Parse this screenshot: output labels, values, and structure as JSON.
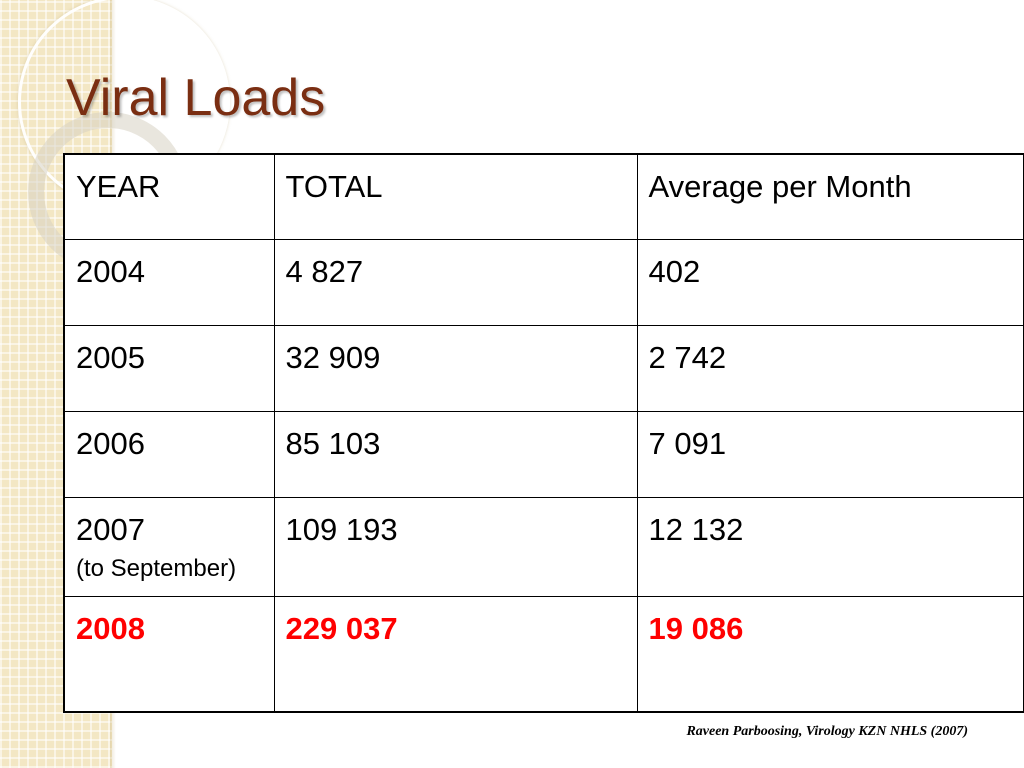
{
  "slide": {
    "title": "Viral Loads",
    "footnote": "Raveen Parboosing, Virology KZN NHLS (2007)"
  },
  "table": {
    "headers": [
      "YEAR",
      "TOTAL",
      "Average per Month"
    ],
    "rows": [
      {
        "year": "2004",
        "note": "",
        "total": "4 827",
        "average": "402",
        "highlighted": false
      },
      {
        "year": "2005",
        "note": "",
        "total": "32 909",
        "average": "2 742",
        "highlighted": false
      },
      {
        "year": "2006",
        "note": "",
        "total": "85 103",
        "average": "7 091",
        "highlighted": false
      },
      {
        "year": "2007",
        "note": "(to September)",
        "total": "109 193",
        "average": "12 132",
        "highlighted": false
      },
      {
        "year": "2008",
        "note": "",
        "total": "229 037",
        "average": "19 086",
        "highlighted": true
      }
    ]
  },
  "colors": {
    "title": "#7a2e12",
    "highlight": "#ff0000",
    "side_panel": "#f3e7c4"
  }
}
